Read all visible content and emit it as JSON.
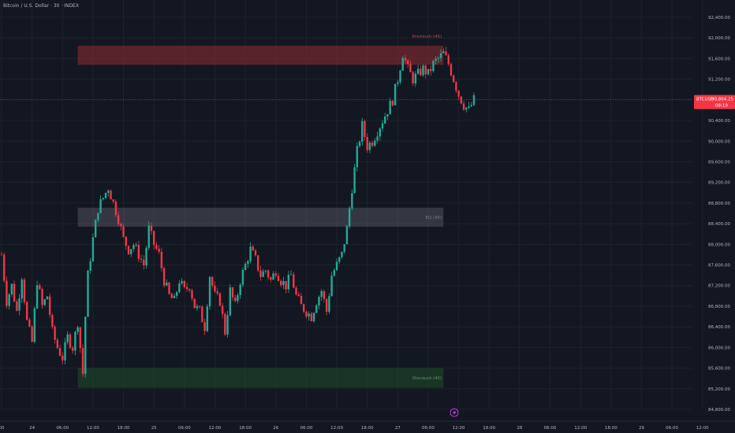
{
  "header": {
    "symbol_title": "Bitcoin / U.S. Dollar · 30 · INDEX"
  },
  "price_tag": {
    "symbol": "BTCUSD",
    "price": "90,804.25",
    "countdown": "08:19",
    "color": "#f23645"
  },
  "colors": {
    "background": "#131722",
    "up": "#22ab94",
    "down": "#f23645",
    "premium_zone": "#8b2a32",
    "eq_zone": "#5d606b",
    "discount_zone": "#1f4a2a"
  },
  "chart_data": {
    "type": "candlestick",
    "title": "Bitcoin / U.S. Dollar · 30 · INDEX",
    "ylim": [
      84800,
      92400
    ],
    "y_ticks": [
      "92,400.00",
      "92,000.00",
      "91,600.00",
      "91,200.00",
      "90,800.00",
      "90,400.00",
      "90,000.00",
      "89,600.00",
      "89,200.00",
      "88,800.00",
      "88,400.00",
      "88,000.00",
      "87,600.00",
      "87,200.00",
      "86,800.00",
      "86,400.00",
      "86,000.00",
      "85,600.00",
      "85,200.00",
      "84,800.00"
    ],
    "x_ticks": [
      "00",
      "24",
      "06:00",
      "12:00",
      "18:00",
      "25",
      "06:00",
      "12:00",
      "18:00",
      "26",
      "06:00",
      "12:00",
      "18:00",
      "27",
      "06:00",
      "12:00",
      "18:00",
      "28",
      "06:00",
      "12:00",
      "18:00",
      "29",
      "06:00",
      "12:00"
    ],
    "x_range_hours": [
      0,
      132
    ],
    "zones": [
      {
        "label": "Premium (45)",
        "y_top": 91850,
        "y_bottom": 91480,
        "x_start_h": 15,
        "x_end_h": 87,
        "kind": "premium"
      },
      {
        "label": "EQ (45)",
        "y_top": 88710,
        "y_bottom": 88340,
        "x_start_h": 15,
        "x_end_h": 87,
        "kind": "eq"
      },
      {
        "label": "Discount (45)",
        "y_top": 85600,
        "y_bottom": 85220,
        "x_start_h": 15,
        "x_end_h": 87,
        "kind": "discount"
      }
    ],
    "price_path": [
      [
        0,
        87800
      ],
      [
        1,
        86900
      ],
      [
        2,
        87200
      ],
      [
        3,
        86700
      ],
      [
        4,
        87400
      ],
      [
        5,
        86500
      ],
      [
        6,
        86100
      ],
      [
        7,
        87300
      ],
      [
        8,
        86800
      ],
      [
        9,
        87000
      ],
      [
        10,
        86300
      ],
      [
        11,
        86000
      ],
      [
        12,
        85800
      ],
      [
        13,
        86200
      ],
      [
        14,
        86000
      ],
      [
        15,
        86500
      ],
      [
        16,
        85500
      ],
      [
        16.5,
        86600
      ],
      [
        17,
        87400
      ],
      [
        18,
        88100
      ],
      [
        19,
        88700
      ],
      [
        20,
        88900
      ],
      [
        21,
        89100
      ],
      [
        22,
        88800
      ],
      [
        23,
        88500
      ],
      [
        24,
        88100
      ],
      [
        25,
        87900
      ],
      [
        26,
        88000
      ],
      [
        27,
        87800
      ],
      [
        28,
        87600
      ],
      [
        29,
        88300
      ],
      [
        30,
        88000
      ],
      [
        31,
        87800
      ],
      [
        32,
        87300
      ],
      [
        33,
        87000
      ],
      [
        34,
        86900
      ],
      [
        35,
        87300
      ],
      [
        36,
        87100
      ],
      [
        37,
        87200
      ],
      [
        38,
        86800
      ],
      [
        39,
        86700
      ],
      [
        40,
        86400
      ],
      [
        41,
        87400
      ],
      [
        42,
        87000
      ],
      [
        43,
        86900
      ],
      [
        44,
        86300
      ],
      [
        45,
        87100
      ],
      [
        46,
        86800
      ],
      [
        47,
        87300
      ],
      [
        48,
        87600
      ],
      [
        49,
        87900
      ],
      [
        50,
        87700
      ],
      [
        51,
        87400
      ],
      [
        52,
        87500
      ],
      [
        53,
        87300
      ],
      [
        54,
        87500
      ],
      [
        55,
        87300
      ],
      [
        56,
        87200
      ],
      [
        57,
        87400
      ],
      [
        58,
        87000
      ],
      [
        59,
        86800
      ],
      [
        60,
        86700
      ],
      [
        61,
        86600
      ],
      [
        62,
        86900
      ],
      [
        63,
        87100
      ],
      [
        64,
        86700
      ],
      [
        65,
        87400
      ],
      [
        66,
        87600
      ],
      [
        67,
        87800
      ],
      [
        68,
        88300
      ],
      [
        69,
        89100
      ],
      [
        70,
        89800
      ],
      [
        71,
        90300
      ],
      [
        72,
        89900
      ],
      [
        73,
        90000
      ],
      [
        74,
        90200
      ],
      [
        75,
        90400
      ],
      [
        76,
        90600
      ],
      [
        77,
        90800
      ],
      [
        78,
        91200
      ],
      [
        79,
        91700
      ],
      [
        80,
        91400
      ],
      [
        81,
        91200
      ],
      [
        82,
        91300
      ],
      [
        83,
        91400
      ],
      [
        84,
        91300
      ],
      [
        85,
        91500
      ],
      [
        86,
        91600
      ],
      [
        87,
        91700
      ],
      [
        88,
        91500
      ],
      [
        89,
        91200
      ],
      [
        90,
        90900
      ],
      [
        91,
        90700
      ],
      [
        92,
        90600
      ],
      [
        93,
        90800
      ]
    ]
  }
}
